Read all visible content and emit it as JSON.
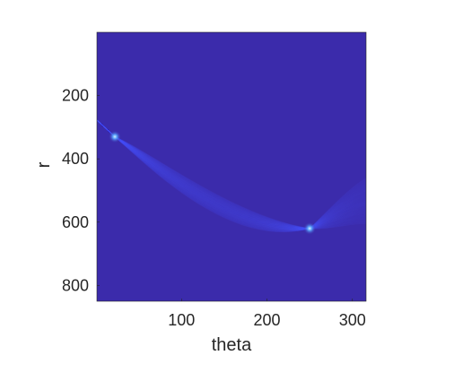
{
  "chart_data": {
    "type": "heatmap",
    "title": "",
    "xlabel": "theta",
    "ylabel": "r",
    "xlim": [
      1,
      316
    ],
    "ylim": [
      850,
      0
    ],
    "xticks": [
      100,
      200,
      300
    ],
    "xtick_labels": [
      "100",
      "200",
      "300"
    ],
    "yticks": [
      200,
      400,
      600,
      800
    ],
    "ytick_labels": [
      "200",
      "400",
      "600",
      "800"
    ],
    "grid": false,
    "legend": "none",
    "colormap": "parula",
    "background_color": "#3b2bab",
    "peaks": [
      {
        "theta": 22,
        "r": 330,
        "strength": 1.0
      },
      {
        "theta": 250,
        "r": 620,
        "strength": 1.0
      }
    ]
  }
}
